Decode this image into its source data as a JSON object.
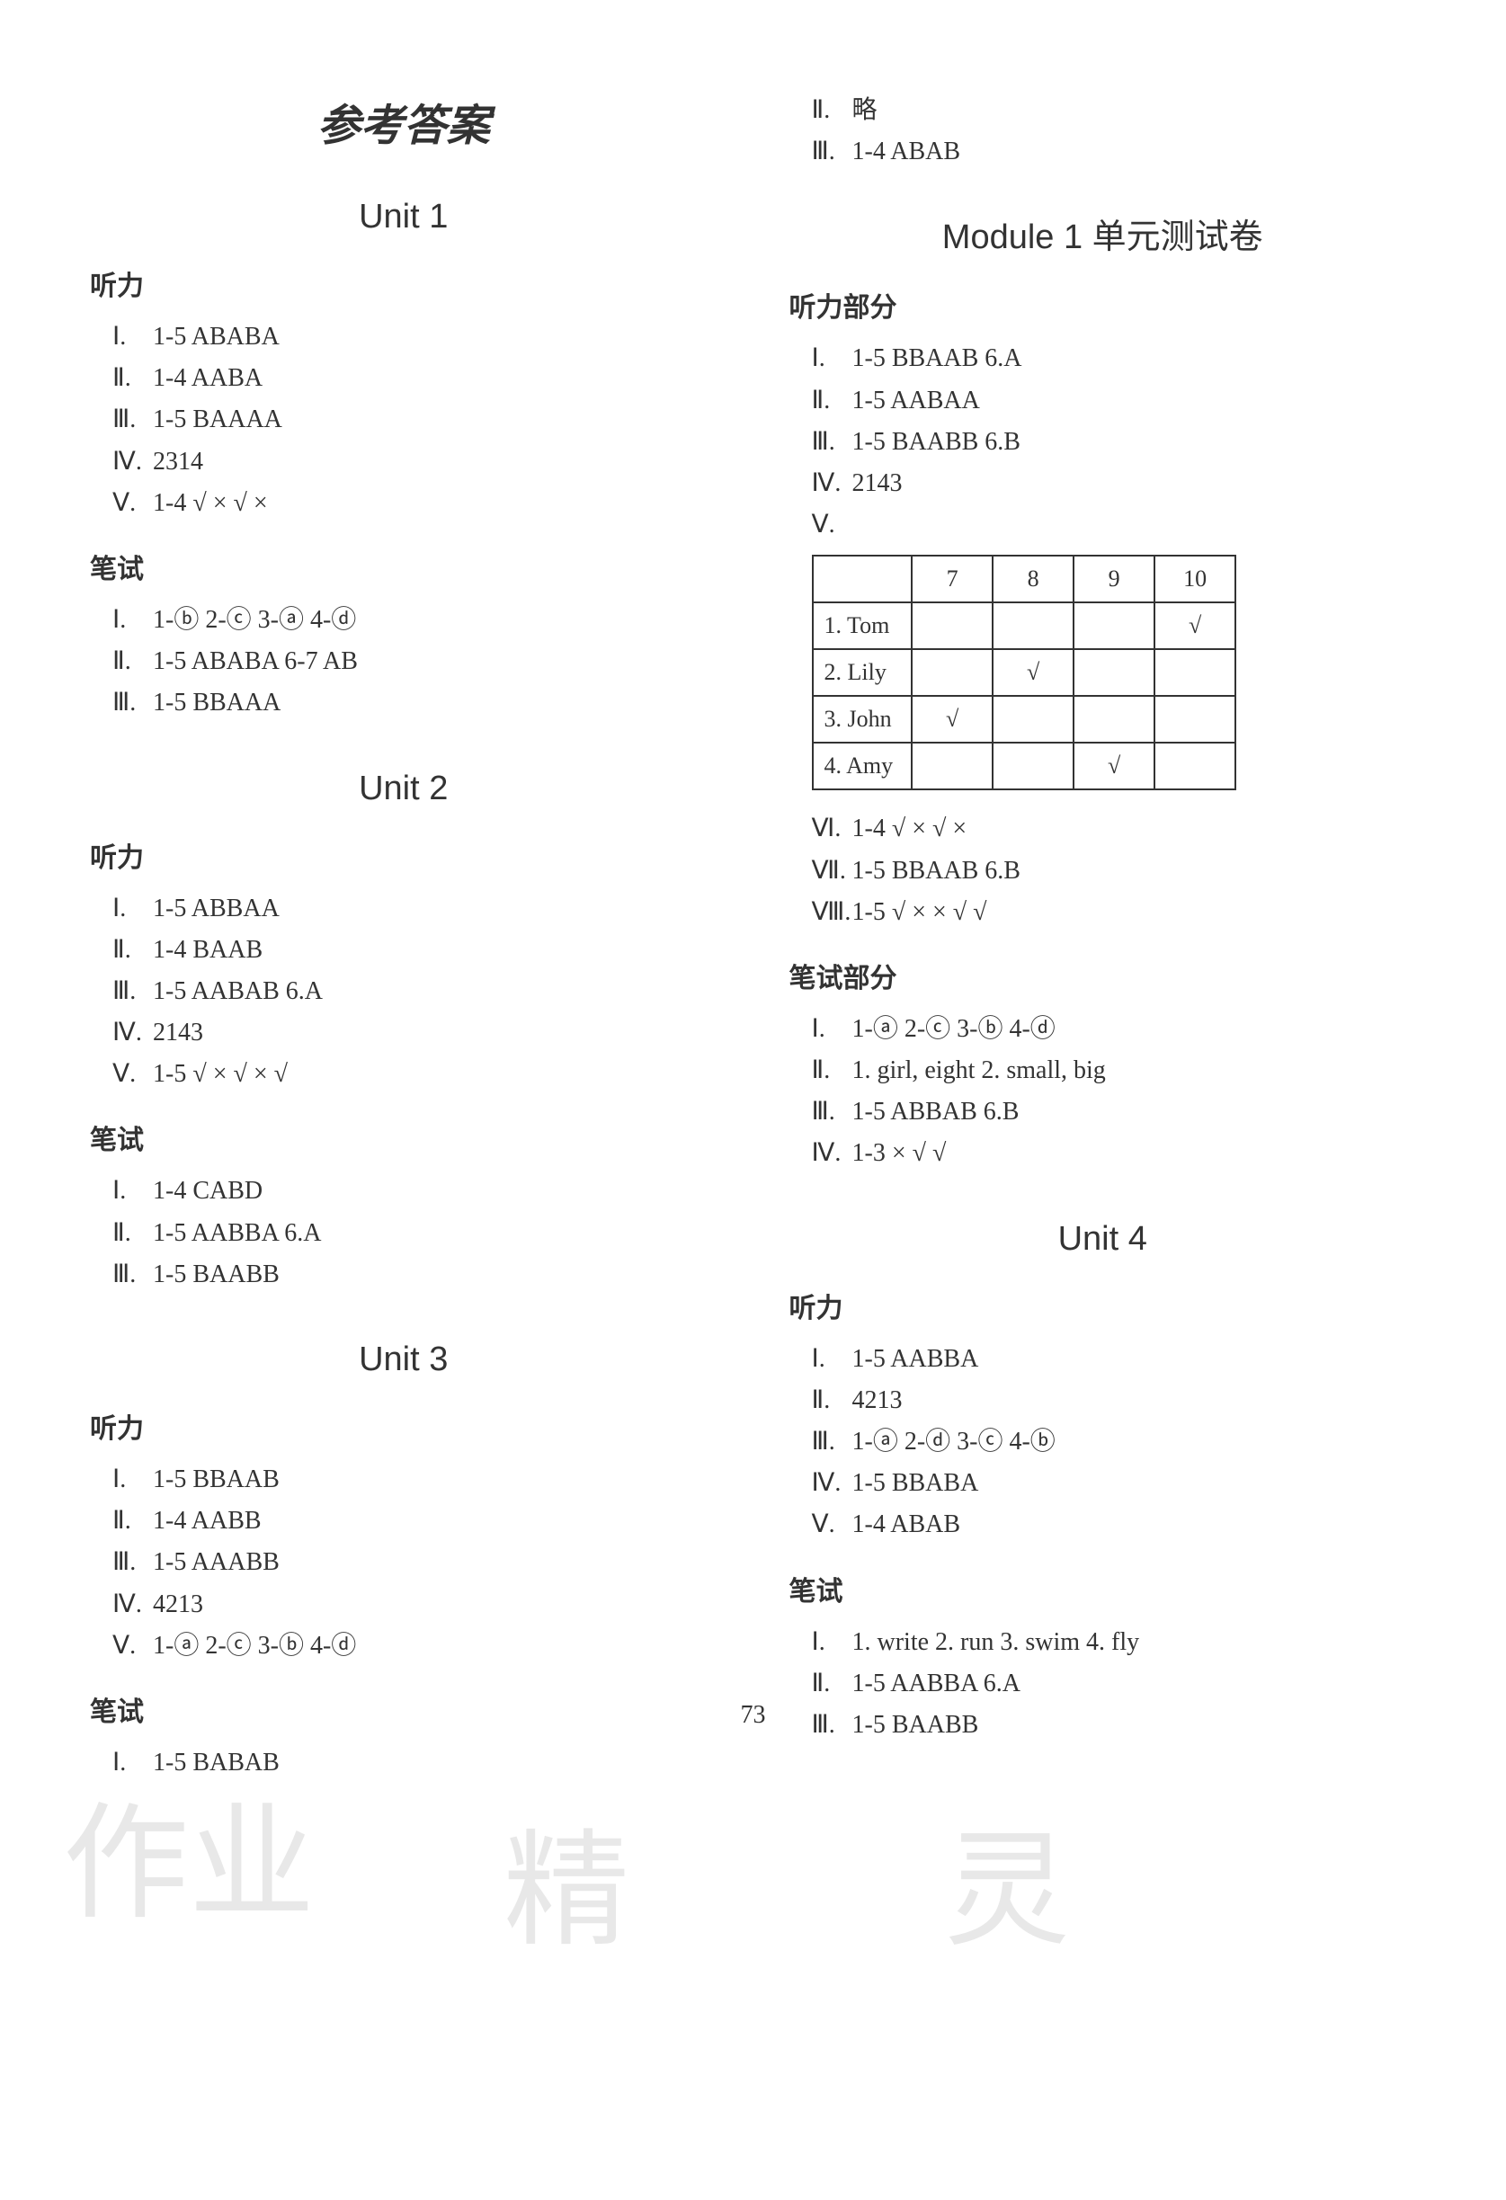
{
  "page_number": "73",
  "main_title": "参考答案",
  "watermarks": [
    "作业",
    "精",
    "灵"
  ],
  "left_column": {
    "unit1": {
      "title": "Unit 1",
      "listening": {
        "label": "听力",
        "lines": [
          {
            "roman": "Ⅰ.",
            "text": "1-5  ABABA"
          },
          {
            "roman": "Ⅱ.",
            "text": "1-4  AABA"
          },
          {
            "roman": "Ⅲ.",
            "text": "1-5  BAAAA"
          },
          {
            "roman": "Ⅳ.",
            "text": "2314"
          },
          {
            "roman": "Ⅴ.",
            "text": "1-4  √ × √ ×"
          }
        ]
      },
      "written": {
        "label": "笔试",
        "lines": [
          {
            "roman": "Ⅰ.",
            "text": "1-ⓑ  2-ⓒ  3-ⓐ  4-ⓓ"
          },
          {
            "roman": "Ⅱ.",
            "text": "1-5  ABABA  6-7  AB"
          },
          {
            "roman": "Ⅲ.",
            "text": "1-5  BBAAA"
          }
        ]
      }
    },
    "unit2": {
      "title": "Unit 2",
      "listening": {
        "label": "听力",
        "lines": [
          {
            "roman": "Ⅰ.",
            "text": "1-5  ABBAA"
          },
          {
            "roman": "Ⅱ.",
            "text": "1-4  BAAB"
          },
          {
            "roman": "Ⅲ.",
            "text": "1-5  AABAB  6.A"
          },
          {
            "roman": "Ⅳ.",
            "text": "2143"
          },
          {
            "roman": "Ⅴ.",
            "text": "1-5  √ × √ × √"
          }
        ]
      },
      "written": {
        "label": "笔试",
        "lines": [
          {
            "roman": "Ⅰ.",
            "text": "1-4  CABD"
          },
          {
            "roman": "Ⅱ.",
            "text": "1-5  AABBA  6.A"
          },
          {
            "roman": "Ⅲ.",
            "text": "1-5  BAABB"
          }
        ]
      }
    },
    "unit3": {
      "title": "Unit 3",
      "listening": {
        "label": "听力",
        "lines": [
          {
            "roman": "Ⅰ.",
            "text": "1-5  BBAAB"
          },
          {
            "roman": "Ⅱ.",
            "text": "1-4  AABB"
          },
          {
            "roman": "Ⅲ.",
            "text": "1-5  AAABB"
          },
          {
            "roman": "Ⅳ.",
            "text": "4213"
          },
          {
            "roman": "Ⅴ.",
            "text": "1-ⓐ  2-ⓒ  3-ⓑ  4-ⓓ"
          }
        ]
      },
      "written": {
        "label": "笔试",
        "lines": [
          {
            "roman": "Ⅰ.",
            "text": "1-5  BABAB"
          }
        ]
      }
    }
  },
  "right_column": {
    "unit3_cont": {
      "lines": [
        {
          "roman": "Ⅱ.",
          "text": "略"
        },
        {
          "roman": "Ⅲ.",
          "text": "1-4  ABAB"
        }
      ]
    },
    "module1": {
      "title": "Module 1 单元测试卷",
      "listening": {
        "label": "听力部分",
        "lines": [
          {
            "roman": "Ⅰ.",
            "text": "1-5  BBAAB  6.A"
          },
          {
            "roman": "Ⅱ.",
            "text": "1-5  AABAA"
          },
          {
            "roman": "Ⅲ.",
            "text": "1-5  BAABB  6.B"
          },
          {
            "roman": "Ⅳ.",
            "text": "2143"
          },
          {
            "roman": "Ⅴ.",
            "text": ""
          }
        ],
        "table": {
          "headers": [
            "",
            "7",
            "8",
            "9",
            "10"
          ],
          "rows": [
            {
              "label": "1. Tom",
              "cells": [
                "",
                "",
                "",
                "√"
              ]
            },
            {
              "label": "2. Lily",
              "cells": [
                "",
                "√",
                "",
                ""
              ]
            },
            {
              "label": "3. John",
              "cells": [
                "√",
                "",
                "",
                ""
              ]
            },
            {
              "label": "4. Amy",
              "cells": [
                "",
                "",
                "√",
                ""
              ]
            }
          ]
        },
        "lines_after": [
          {
            "roman": "Ⅵ.",
            "text": "1-4  √ × √ ×"
          },
          {
            "roman": "Ⅶ.",
            "text": "1-5  BBAAB  6.B"
          },
          {
            "roman": "Ⅷ.",
            "text": "1-5  √ × × √ √"
          }
        ]
      },
      "written": {
        "label": "笔试部分",
        "lines": [
          {
            "roman": "Ⅰ.",
            "text": "1-ⓐ  2-ⓒ  3-ⓑ  4-ⓓ"
          },
          {
            "roman": "Ⅱ.",
            "text": "1. girl, eight  2. small, big"
          },
          {
            "roman": "Ⅲ.",
            "text": "1-5  ABBAB  6.B"
          },
          {
            "roman": "Ⅳ.",
            "text": "1-3  × √ √"
          }
        ]
      }
    },
    "unit4": {
      "title": "Unit 4",
      "listening": {
        "label": "听力",
        "lines": [
          {
            "roman": "Ⅰ.",
            "text": "1-5  AABBA"
          },
          {
            "roman": "Ⅱ.",
            "text": "4213"
          },
          {
            "roman": "Ⅲ.",
            "text": "1-ⓐ  2-ⓓ  3-ⓒ  4-ⓑ"
          },
          {
            "roman": "Ⅳ.",
            "text": "1-5  BBABA"
          },
          {
            "roman": "Ⅴ.",
            "text": "1-4  ABAB"
          }
        ]
      },
      "written": {
        "label": "笔试",
        "lines": [
          {
            "roman": "Ⅰ.",
            "text": "1. write  2. run  3. swim  4. fly"
          },
          {
            "roman": "Ⅱ.",
            "text": "1-5  AABBA  6.A"
          },
          {
            "roman": "Ⅲ.",
            "text": "1-5  BAABB"
          }
        ]
      }
    }
  }
}
